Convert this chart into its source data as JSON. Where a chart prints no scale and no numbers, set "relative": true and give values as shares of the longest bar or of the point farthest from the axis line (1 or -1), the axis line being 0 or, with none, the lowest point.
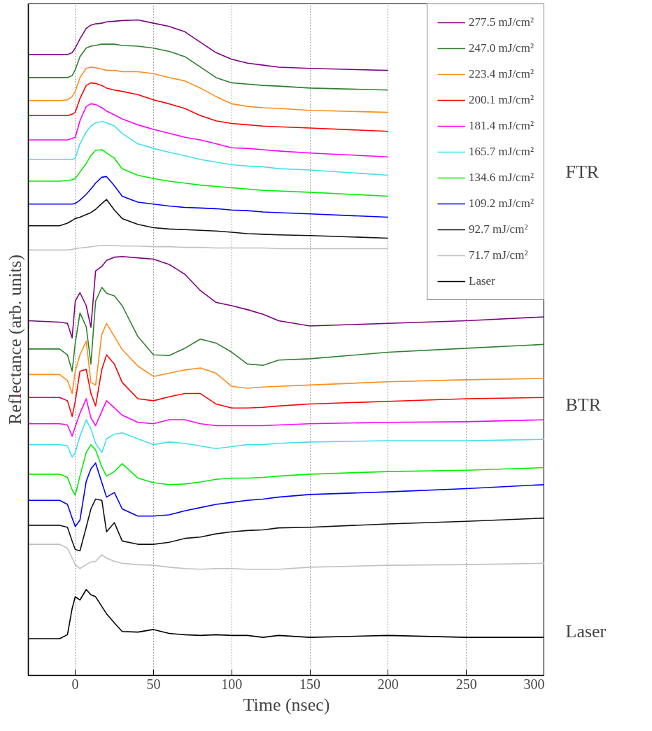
{
  "chart_data": {
    "type": "line",
    "relative": true,
    "xlabel": "Time (nsec)",
    "ylabel": "Reflectance (arb. units)",
    "xlim": [
      -30,
      300
    ],
    "xticks": [
      0,
      50,
      100,
      150,
      200,
      250,
      300
    ],
    "grid": "x",
    "legend": "top right",
    "tick_labels": "x",
    "line_style": "solid",
    "annotations": [
      "FTR",
      "BTR",
      "Laser"
    ],
    "x": [
      -30,
      -10,
      -5,
      -2,
      0,
      3,
      7,
      10,
      13,
      17,
      20,
      25,
      30,
      40,
      50,
      60,
      70,
      80,
      90,
      100,
      110,
      120,
      130,
      150,
      200,
      250,
      300
    ],
    "series": [
      {
        "name": "277.5 mJ/cm²",
        "color": "#800080",
        "values": [
          0.947,
          0.947,
          0.947,
          0.95,
          0.957,
          0.971,
          0.987,
          0.992,
          0.994,
          0.995,
          0.997,
          0.998,
          0.999,
          1.0,
          0.995,
          0.99,
          0.982,
          0.966,
          0.95,
          0.94,
          0.934,
          0.931,
          0.928,
          0.926,
          0.923,
          null,
          null
        ]
      },
      {
        "name": "247.0 mJ/cm²",
        "color": "#2f7f2f",
        "values": [
          0.912,
          0.912,
          0.912,
          0.915,
          0.924,
          0.944,
          0.957,
          0.96,
          0.961,
          0.963,
          0.963,
          0.963,
          0.961,
          0.96,
          0.957,
          0.952,
          0.944,
          0.928,
          0.912,
          0.904,
          0.902,
          0.9,
          0.899,
          0.896,
          0.893,
          null,
          null
        ]
      },
      {
        "name": "223.4 mJ/cm²",
        "color": "#ff8c1a",
        "values": [
          0.877,
          0.877,
          0.878,
          0.883,
          0.891,
          0.912,
          0.926,
          0.928,
          0.927,
          0.925,
          0.923,
          0.923,
          0.921,
          0.921,
          0.918,
          0.912,
          0.907,
          0.896,
          0.883,
          0.872,
          0.868,
          0.866,
          0.865,
          0.862,
          0.859,
          null,
          null
        ]
      },
      {
        "name": "200.1 mJ/cm²",
        "color": "#ff0000",
        "values": [
          0.854,
          0.854,
          0.854,
          0.856,
          0.859,
          0.88,
          0.9,
          0.904,
          0.903,
          0.9,
          0.896,
          0.893,
          0.891,
          0.886,
          0.878,
          0.872,
          0.865,
          0.854,
          0.846,
          0.842,
          0.84,
          0.838,
          0.837,
          0.835,
          0.83,
          null,
          null
        ]
      },
      {
        "name": "181.4 mJ/cm²",
        "color": "#ff00ff",
        "values": [
          0.817,
          0.817,
          0.817,
          0.819,
          0.821,
          0.846,
          0.868,
          0.872,
          0.871,
          0.866,
          0.861,
          0.855,
          0.849,
          0.84,
          0.833,
          0.827,
          0.821,
          0.817,
          0.811,
          0.805,
          0.804,
          0.802,
          0.8,
          0.797,
          0.791,
          null,
          null
        ]
      },
      {
        "name": "165.7 mJ/cm²",
        "color": "#40e0f0",
        "values": [
          0.787,
          0.787,
          0.787,
          0.787,
          0.789,
          0.811,
          0.829,
          0.838,
          0.843,
          0.845,
          0.843,
          0.838,
          0.827,
          0.811,
          0.804,
          0.798,
          0.793,
          0.787,
          0.783,
          0.779,
          0.777,
          0.776,
          0.773,
          0.771,
          0.763,
          null,
          null
        ]
      },
      {
        "name": "134.6 mJ/cm²",
        "color": "#00ee00",
        "values": [
          0.754,
          0.754,
          0.755,
          0.756,
          0.758,
          0.768,
          0.781,
          0.793,
          0.801,
          0.802,
          0.797,
          0.789,
          0.773,
          0.763,
          0.758,
          0.754,
          0.751,
          0.748,
          0.746,
          0.744,
          0.742,
          0.74,
          0.739,
          0.737,
          0.731,
          null,
          null
        ]
      },
      {
        "name": "109.2 mJ/cm²",
        "color": "#0000ff",
        "values": [
          0.719,
          0.719,
          0.719,
          0.719,
          0.72,
          0.725,
          0.734,
          0.742,
          0.751,
          0.76,
          0.761,
          0.747,
          0.731,
          0.722,
          0.719,
          0.716,
          0.714,
          0.713,
          0.712,
          0.71,
          0.709,
          0.707,
          0.706,
          0.704,
          0.699,
          null,
          null
        ]
      },
      {
        "name": "92.7 mJ/cm²",
        "color": "#111111",
        "values": [
          0.686,
          0.686,
          0.69,
          0.694,
          0.697,
          0.699,
          0.703,
          0.706,
          0.711,
          0.72,
          0.726,
          0.71,
          0.697,
          0.688,
          0.683,
          0.681,
          0.68,
          0.679,
          0.678,
          0.676,
          0.674,
          0.673,
          0.672,
          0.671,
          0.667,
          null,
          null
        ]
      },
      {
        "name": "71.7 mJ/cm²",
        "color": "#c0c0c0",
        "values": [
          0.649,
          0.649,
          0.649,
          0.65,
          0.651,
          0.652,
          0.653,
          0.654,
          0.655,
          0.656,
          0.656,
          0.656,
          0.655,
          0.655,
          0.654,
          0.654,
          0.653,
          0.653,
          0.652,
          0.652,
          0.652,
          0.652,
          0.651,
          0.651,
          0.651,
          null,
          null
        ]
      },
      {
        "color": "#800080",
        "values": [
          0.541,
          0.539,
          0.537,
          0.515,
          0.571,
          0.584,
          0.564,
          0.531,
          0.617,
          0.624,
          0.633,
          0.638,
          0.639,
          0.637,
          0.635,
          0.627,
          0.612,
          0.587,
          0.569,
          0.564,
          0.558,
          0.551,
          0.541,
          0.533,
          0.537,
          0.541,
          0.547
        ]
      },
      {
        "color": "#2f7f2f",
        "values": [
          0.498,
          0.498,
          0.489,
          0.464,
          0.507,
          0.553,
          0.532,
          0.475,
          0.571,
          0.592,
          0.583,
          0.579,
          0.564,
          0.517,
          0.489,
          0.488,
          0.499,
          0.513,
          0.507,
          0.493,
          0.475,
          0.473,
          0.481,
          0.483,
          0.493,
          0.499,
          0.505
        ]
      },
      {
        "color": "#ff8c1a",
        "values": [
          0.459,
          0.459,
          0.45,
          0.43,
          0.464,
          0.489,
          0.51,
          0.447,
          0.443,
          0.521,
          0.537,
          0.517,
          0.497,
          0.472,
          0.456,
          0.461,
          0.466,
          0.469,
          0.461,
          0.441,
          0.438,
          0.44,
          0.441,
          0.443,
          0.448,
          0.451,
          0.453
        ]
      },
      {
        "color": "#ff0000",
        "values": [
          0.424,
          0.424,
          0.419,
          0.395,
          0.418,
          0.464,
          0.467,
          0.43,
          0.411,
          0.467,
          0.489,
          0.475,
          0.447,
          0.422,
          0.419,
          0.425,
          0.43,
          0.43,
          0.414,
          0.408,
          0.408,
          0.409,
          0.411,
          0.414,
          0.418,
          0.422,
          0.424
        ]
      },
      {
        "color": "#ff00ff",
        "values": [
          0.384,
          0.384,
          0.382,
          0.365,
          0.379,
          0.4,
          0.422,
          0.393,
          0.381,
          0.403,
          0.419,
          0.408,
          0.397,
          0.386,
          0.384,
          0.39,
          0.39,
          0.384,
          0.381,
          0.381,
          0.381,
          0.381,
          0.382,
          0.384,
          0.386,
          0.387,
          0.39
        ]
      },
      {
        "color": "#40e0f0",
        "values": [
          0.352,
          0.352,
          0.35,
          0.333,
          0.34,
          0.365,
          0.39,
          0.376,
          0.354,
          0.34,
          0.361,
          0.368,
          0.37,
          0.361,
          0.352,
          0.356,
          0.354,
          0.35,
          0.346,
          0.349,
          0.352,
          0.352,
          0.354,
          0.356,
          0.358,
          0.358,
          0.36
        ]
      },
      {
        "color": "#00ee00",
        "values": [
          0.307,
          0.307,
          0.302,
          0.283,
          0.275,
          0.304,
          0.34,
          0.352,
          0.344,
          0.318,
          0.304,
          0.311,
          0.323,
          0.301,
          0.294,
          0.291,
          0.292,
          0.295,
          0.299,
          0.301,
          0.301,
          0.302,
          0.304,
          0.307,
          0.311,
          0.313,
          0.317
        ]
      },
      {
        "color": "#0000ff",
        "values": [
          0.267,
          0.267,
          0.261,
          0.24,
          0.227,
          0.237,
          0.296,
          0.315,
          0.324,
          0.294,
          0.272,
          0.279,
          0.254,
          0.243,
          0.243,
          0.245,
          0.251,
          0.256,
          0.261,
          0.264,
          0.267,
          0.269,
          0.272,
          0.276,
          0.28,
          0.285,
          0.291
        ]
      },
      {
        "color": "#111111",
        "values": [
          0.229,
          0.229,
          0.226,
          0.205,
          0.192,
          0.19,
          0.226,
          0.254,
          0.269,
          0.267,
          0.219,
          0.233,
          0.205,
          0.2,
          0.2,
          0.203,
          0.209,
          0.211,
          0.216,
          0.219,
          0.221,
          0.222,
          0.225,
          0.226,
          0.231,
          0.235,
          0.24
        ]
      },
      {
        "color": "#c0c0c0",
        "values": [
          0.2,
          0.2,
          0.194,
          0.179,
          0.169,
          0.163,
          0.169,
          0.173,
          0.174,
          0.184,
          0.179,
          0.174,
          0.171,
          0.169,
          0.168,
          0.165,
          0.163,
          0.162,
          0.163,
          0.163,
          0.162,
          0.162,
          0.162,
          0.165,
          0.168,
          0.169,
          0.171
        ]
      },
      {
        "name": "Laser",
        "color": "#000000",
        "values": [
          0.056,
          0.056,
          0.062,
          0.102,
          0.12,
          0.115,
          0.131,
          0.123,
          0.12,
          0.105,
          0.094,
          0.08,
          0.067,
          0.066,
          0.07,
          0.064,
          0.062,
          0.061,
          0.062,
          0.061,
          0.061,
          0.058,
          0.061,
          0.058,
          0.061,
          0.058,
          0.058
        ]
      }
    ]
  }
}
